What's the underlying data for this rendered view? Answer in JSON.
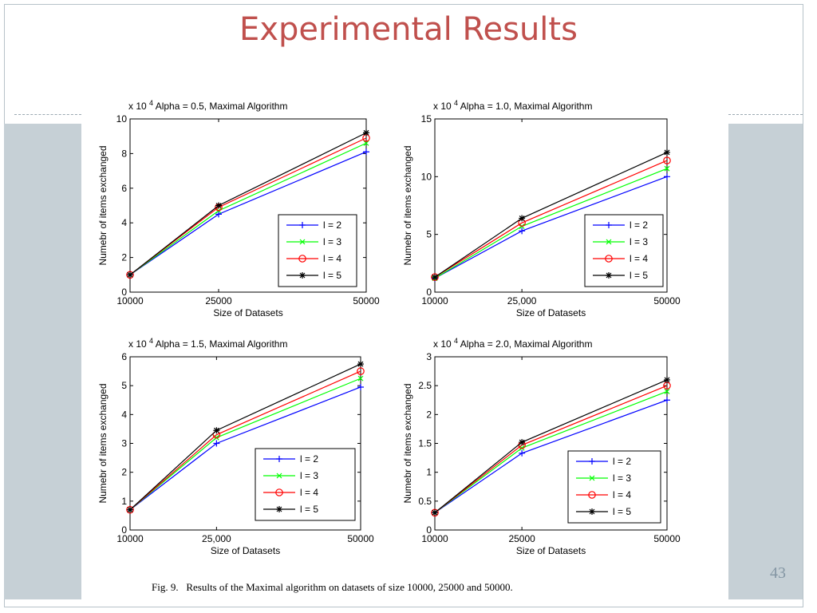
{
  "slide": {
    "title": "Experimental Results",
    "page_number": "43",
    "caption": "Fig. 9.   Results of the Maximal algorithm on datasets of size 10000, 25000 and 50000."
  },
  "colors": {
    "title": "#c0504d",
    "band": "#c6d0d6",
    "page_number": "#8496a4"
  },
  "chart_data": [
    {
      "type": "line",
      "title": "Alpha = 0.5, Maximal Algorithm",
      "multiplier": "x 10",
      "multiplier_exp": "4",
      "xlabel": "Size of Datasets",
      "ylabel": "Numebr of items exchanged",
      "x": [
        10000,
        25000,
        50000
      ],
      "x_tick_labels": [
        "10000",
        "25000",
        "50000"
      ],
      "xlim": [
        10000,
        50000
      ],
      "ylim": [
        0,
        10
      ],
      "y_ticks": [
        0,
        2,
        4,
        6,
        8,
        10
      ],
      "y_tick_labels": [
        "0",
        "2",
        "4",
        "6",
        "8",
        "10"
      ],
      "legend_position": "lower-right",
      "series": [
        {
          "name": "l = 2",
          "color": "#0000ff",
          "marker": "plus",
          "values": [
            1.0,
            4.5,
            8.1
          ]
        },
        {
          "name": "l = 3",
          "color": "#00ff00",
          "marker": "x",
          "values": [
            1.0,
            4.7,
            8.6
          ]
        },
        {
          "name": "l = 4",
          "color": "#ff0000",
          "marker": "circle",
          "values": [
            1.0,
            4.9,
            8.9
          ]
        },
        {
          "name": "l = 5",
          "color": "#000000",
          "marker": "star",
          "values": [
            1.0,
            5.0,
            9.2
          ]
        }
      ]
    },
    {
      "type": "line",
      "title": "Alpha = 1.0, Maximal Algorithm",
      "multiplier": "x 10",
      "multiplier_exp": "4",
      "xlabel": "Size of Datasets",
      "ylabel": "Numebr of items exchanged",
      "x": [
        10000,
        25000,
        50000
      ],
      "x_tick_labels": [
        "10000",
        "25,000",
        "50000"
      ],
      "xlim": [
        10000,
        50000
      ],
      "ylim": [
        0,
        15
      ],
      "y_ticks": [
        0,
        5,
        10,
        15
      ],
      "y_tick_labels": [
        "0",
        "5",
        "10",
        "15"
      ],
      "legend_position": "lower-right",
      "series": [
        {
          "name": "l = 2",
          "color": "#0000ff",
          "marker": "plus",
          "values": [
            1.2,
            5.3,
            10.0
          ]
        },
        {
          "name": "l = 3",
          "color": "#00ff00",
          "marker": "x",
          "values": [
            1.2,
            5.7,
            10.7
          ]
        },
        {
          "name": "l = 4",
          "color": "#ff0000",
          "marker": "circle",
          "values": [
            1.3,
            6.0,
            11.4
          ]
        },
        {
          "name": "l = 5",
          "color": "#000000",
          "marker": "star",
          "values": [
            1.3,
            6.4,
            12.1
          ]
        }
      ]
    },
    {
      "type": "line",
      "title": "Alpha = 1.5, Maximal Algorithm",
      "multiplier": "x 10",
      "multiplier_exp": "4",
      "xlabel": "Size of Datasets",
      "ylabel": "Numebr of items exchanged",
      "x": [
        10000,
        25000,
        50000
      ],
      "x_tick_labels": [
        "10000",
        "25,000",
        "50000"
      ],
      "xlim": [
        10000,
        50000
      ],
      "ylim": [
        0,
        6
      ],
      "y_ticks": [
        0,
        1,
        2,
        3,
        4,
        5,
        6
      ],
      "y_tick_labels": [
        "0",
        "1",
        "2",
        "3",
        "4",
        "5",
        "6"
      ],
      "legend_position": "lower-right",
      "series": [
        {
          "name": "l = 2",
          "color": "#0000ff",
          "marker": "plus",
          "values": [
            0.7,
            3.0,
            4.95
          ]
        },
        {
          "name": "l = 3",
          "color": "#00ff00",
          "marker": "x",
          "values": [
            0.7,
            3.2,
            5.25
          ]
        },
        {
          "name": "l = 4",
          "color": "#ff0000",
          "marker": "circle",
          "values": [
            0.7,
            3.3,
            5.5
          ]
        },
        {
          "name": "l = 5",
          "color": "#000000",
          "marker": "star",
          "values": [
            0.7,
            3.45,
            5.75
          ]
        }
      ]
    },
    {
      "type": "line",
      "title": "Alpha = 2.0, Maximal Algorithm",
      "multiplier": "x 10",
      "multiplier_exp": "4",
      "xlabel": "Size of Datasets",
      "ylabel": "Numebr of items exchanged",
      "x": [
        10000,
        25000,
        50000
      ],
      "x_tick_labels": [
        "10000",
        "25000",
        "50000"
      ],
      "xlim": [
        10000,
        50000
      ],
      "ylim": [
        0,
        3
      ],
      "y_ticks": [
        0,
        0.5,
        1,
        1.5,
        2,
        2.5,
        3
      ],
      "y_tick_labels": [
        "0",
        "0.5",
        "1",
        "1.5",
        "2",
        "2.5",
        "3"
      ],
      "legend_position": "lower-right",
      "series": [
        {
          "name": "l = 2",
          "color": "#0000ff",
          "marker": "plus",
          "values": [
            0.3,
            1.33,
            2.25
          ]
        },
        {
          "name": "l = 3",
          "color": "#00ff00",
          "marker": "x",
          "values": [
            0.3,
            1.42,
            2.4
          ]
        },
        {
          "name": "l = 4",
          "color": "#ff0000",
          "marker": "circle",
          "values": [
            0.3,
            1.47,
            2.5
          ]
        },
        {
          "name": "l = 5",
          "color": "#000000",
          "marker": "star",
          "values": [
            0.3,
            1.52,
            2.6
          ]
        }
      ]
    }
  ]
}
